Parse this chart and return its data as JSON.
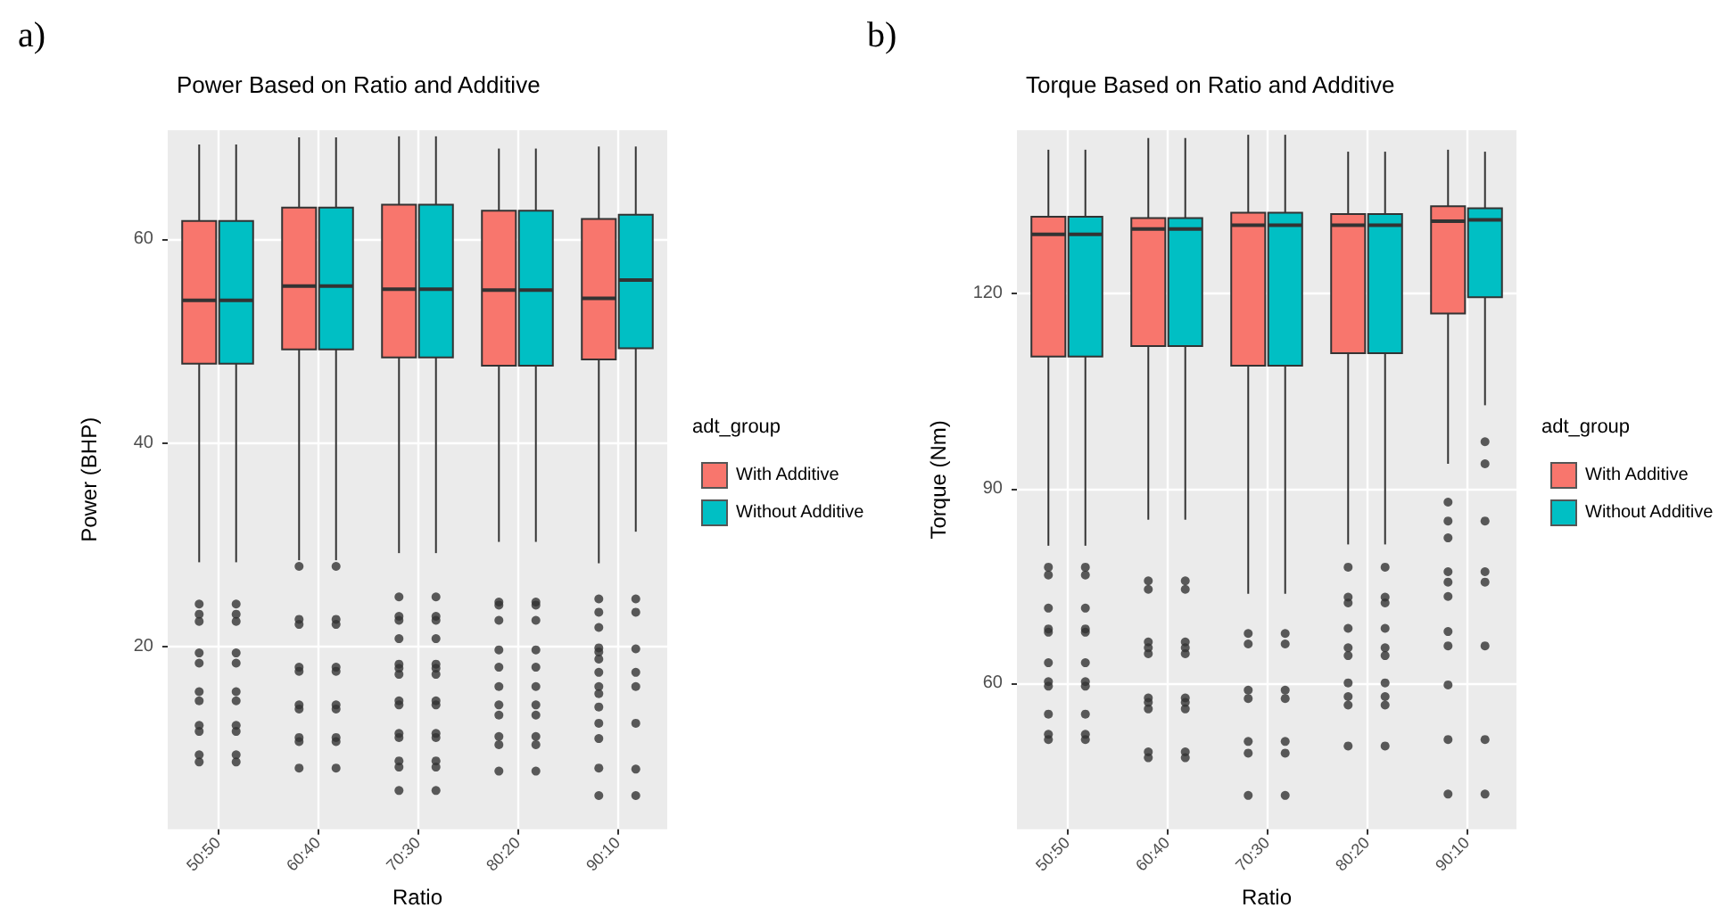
{
  "chart_data": [
    {
      "type": "box",
      "title": "Power Based on Ratio and Additive",
      "xlabel": "Ratio",
      "ylabel": "Power (BHP)",
      "legend_title": "adt_group",
      "annotations": [
        "a)"
      ],
      "categories": [
        "50:50",
        "60:40",
        "70:30",
        "80:20",
        "90:10"
      ],
      "ylim": [
        2.1,
        70.7
      ],
      "yticks": [
        20,
        40,
        60
      ],
      "grid": true,
      "legend": "right",
      "series": [
        {
          "name": "With Additive",
          "color": "#f8766d",
          "boxes": [
            {
              "low": 28.3,
              "q1": 47.8,
              "median": 54.0,
              "q3": 61.8,
              "high": 69.3,
              "outliers": [
                24.2,
                23.2,
                22.5,
                19.4,
                18.4,
                15.6,
                14.7,
                12.3,
                11.7,
                9.4,
                8.7
              ]
            },
            {
              "low": 28.5,
              "q1": 49.2,
              "median": 55.4,
              "q3": 63.1,
              "high": 70.0,
              "outliers": [
                27.9,
                22.7,
                22.2,
                18.0,
                17.6,
                14.3,
                13.9,
                11.1,
                10.7,
                8.1
              ]
            },
            {
              "low": 29.2,
              "q1": 48.4,
              "median": 55.1,
              "q3": 63.4,
              "high": 70.1,
              "outliers": [
                24.9,
                23.0,
                22.6,
                20.8,
                18.3,
                17.9,
                17.3,
                14.7,
                14.3,
                11.5,
                11.1,
                8.8,
                8.2,
                5.9
              ]
            },
            {
              "low": 30.3,
              "q1": 47.6,
              "median": 55.0,
              "q3": 62.8,
              "high": 68.9,
              "outliers": [
                24.4,
                24.1,
                22.6,
                19.7,
                18.0,
                16.1,
                14.3,
                13.3,
                11.2,
                10.4,
                7.8
              ]
            },
            {
              "low": 28.2,
              "q1": 48.2,
              "median": 54.2,
              "q3": 62.0,
              "high": 69.1,
              "outliers": [
                24.7,
                23.4,
                21.9,
                19.9,
                19.5,
                18.8,
                17.5,
                16.1,
                15.4,
                14.1,
                12.5,
                11.0,
                8.1,
                5.4
              ]
            }
          ]
        },
        {
          "name": "Without Additive",
          "color": "#00bfc4",
          "boxes": [
            {
              "low": 28.3,
              "q1": 47.8,
              "median": 54.0,
              "q3": 61.8,
              "high": 69.3,
              "outliers": [
                24.2,
                23.2,
                22.5,
                19.4,
                18.4,
                15.6,
                14.7,
                12.3,
                11.7,
                9.4,
                8.7
              ]
            },
            {
              "low": 28.5,
              "q1": 49.2,
              "median": 55.4,
              "q3": 63.1,
              "high": 70.0,
              "outliers": [
                27.9,
                22.7,
                22.2,
                18.0,
                17.6,
                14.3,
                13.9,
                11.1,
                10.7,
                8.1
              ]
            },
            {
              "low": 29.2,
              "q1": 48.4,
              "median": 55.1,
              "q3": 63.4,
              "high": 70.1,
              "outliers": [
                24.9,
                23.0,
                22.6,
                20.8,
                18.3,
                17.9,
                17.3,
                14.7,
                14.3,
                11.5,
                11.1,
                8.8,
                8.2,
                5.9
              ]
            },
            {
              "low": 30.3,
              "q1": 47.6,
              "median": 55.0,
              "q3": 62.8,
              "high": 68.9,
              "outliers": [
                24.4,
                24.1,
                22.6,
                19.7,
                18.0,
                16.1,
                14.3,
                13.3,
                11.2,
                10.4,
                7.8
              ]
            },
            {
              "low": 31.3,
              "q1": 49.3,
              "median": 56.0,
              "q3": 62.4,
              "high": 69.1,
              "outliers": [
                24.7,
                23.4,
                19.8,
                17.5,
                16.1,
                12.5,
                8.0,
                5.4
              ]
            }
          ]
        }
      ]
    },
    {
      "type": "box",
      "title": "Torque Based on Ratio and Additive",
      "xlabel": "Ratio",
      "ylabel": "Torque (Nm)",
      "legend_title": "adt_group",
      "annotations": [
        "b)"
      ],
      "categories": [
        "50:50",
        "60:40",
        "70:30",
        "80:20",
        "90:10"
      ],
      "ylim": [
        37.6,
        145.1
      ],
      "yticks": [
        60,
        90,
        120
      ],
      "grid": true,
      "legend": "right",
      "series": [
        {
          "name": "With Additive",
          "color": "#f8766d",
          "boxes": [
            {
              "low": 81.2,
              "q1": 110.3,
              "median": 129.1,
              "q3": 131.8,
              "high": 142.1,
              "outliers": [
                77.9,
                76.7,
                71.6,
                68.4,
                67.9,
                63.2,
                60.3,
                59.6,
                55.3,
                52.2,
                51.4
              ]
            },
            {
              "low": 85.2,
              "q1": 111.9,
              "median": 129.9,
              "q3": 131.6,
              "high": 143.9,
              "outliers": [
                75.8,
                74.5,
                66.4,
                65.5,
                64.6,
                57.8,
                57.1,
                56.1,
                49.5,
                48.6
              ]
            },
            {
              "low": 73.8,
              "q1": 108.9,
              "median": 130.5,
              "q3": 132.4,
              "high": 144.4,
              "outliers": [
                67.7,
                66.1,
                59.0,
                57.7,
                51.1,
                49.3,
                42.8
              ]
            },
            {
              "low": 81.4,
              "q1": 110.8,
              "median": 130.5,
              "q3": 132.2,
              "high": 141.8,
              "outliers": [
                77.9,
                73.3,
                72.4,
                68.5,
                65.5,
                64.3,
                60.1,
                58.0,
                56.7,
                50.4
              ]
            },
            {
              "low": 93.8,
              "q1": 116.9,
              "median": 131.1,
              "q3": 133.4,
              "high": 142.1,
              "outliers": [
                87.9,
                85.0,
                82.4,
                77.2,
                75.6,
                73.4,
                68.0,
                65.8,
                59.8,
                51.4,
                43.0
              ]
            }
          ]
        },
        {
          "name": "Without Additive",
          "color": "#00bfc4",
          "boxes": [
            {
              "low": 81.2,
              "q1": 110.3,
              "median": 129.1,
              "q3": 131.8,
              "high": 142.1,
              "outliers": [
                77.9,
                76.7,
                71.6,
                68.4,
                67.9,
                63.2,
                60.3,
                59.6,
                55.3,
                52.2,
                51.4
              ]
            },
            {
              "low": 85.2,
              "q1": 111.9,
              "median": 129.9,
              "q3": 131.6,
              "high": 143.9,
              "outliers": [
                75.8,
                74.5,
                66.4,
                65.5,
                64.6,
                57.8,
                57.1,
                56.1,
                49.5,
                48.6
              ]
            },
            {
              "low": 73.8,
              "q1": 108.9,
              "median": 130.5,
              "q3": 132.4,
              "high": 144.4,
              "outliers": [
                67.7,
                66.1,
                59.0,
                57.7,
                51.1,
                49.3,
                42.8
              ]
            },
            {
              "low": 81.4,
              "q1": 110.8,
              "median": 130.5,
              "q3": 132.2,
              "high": 141.8,
              "outliers": [
                77.9,
                73.3,
                72.4,
                68.5,
                65.5,
                64.3,
                60.1,
                58.0,
                56.7,
                50.4
              ]
            },
            {
              "low": 102.8,
              "q1": 119.4,
              "median": 131.3,
              "q3": 133.1,
              "high": 141.8,
              "outliers": [
                97.2,
                93.8,
                85.0,
                77.2,
                75.6,
                65.8,
                51.4,
                43.0
              ]
            }
          ]
        }
      ]
    }
  ]
}
